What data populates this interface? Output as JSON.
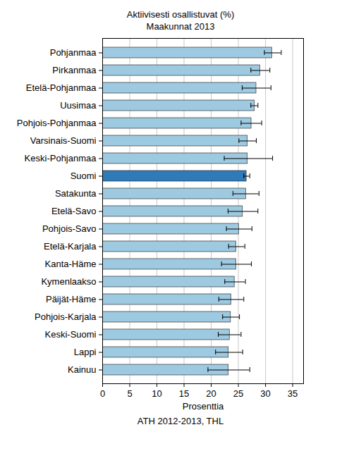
{
  "chart_data": {
    "type": "bar",
    "orientation": "horizontal",
    "title": "Aktiivisesti osallistuvat (%)",
    "subtitle": "Maakunnat 2013",
    "x_label": "Prosenttia",
    "caption": "ATH 2012-2013, THL",
    "categories": [
      "Pohjanmaa",
      "Pirkanmaa",
      "Etelä-Pohjanmaa",
      "Uusimaa",
      "Pohjois-Pohjanmaa",
      "Varsinais-Suomi",
      "Keski-Pohjanmaa",
      "Suomi",
      "Satakunta",
      "Etelä-Savo",
      "Pohjois-Savo",
      "Etelä-Karjala",
      "Kanta-Häme",
      "Kymenlaakso",
      "Päijät-Häme",
      "Pohjois-Karjala",
      "Keski-Suomi",
      "Lappi",
      "Kainuu"
    ],
    "values": [
      31.2,
      29.0,
      28.3,
      28.0,
      27.4,
      26.7,
      26.7,
      26.5,
      26.4,
      25.8,
      25.1,
      24.6,
      24.6,
      24.3,
      23.7,
      23.6,
      23.4,
      23.2,
      23.2
    ],
    "error_low": [
      29.8,
      27.3,
      25.7,
      27.3,
      25.5,
      25.1,
      22.4,
      26.0,
      24.0,
      23.1,
      22.8,
      23.2,
      21.9,
      22.5,
      21.4,
      22.1,
      21.3,
      20.8,
      19.4
    ],
    "error_high": [
      32.9,
      30.8,
      31.0,
      28.6,
      29.3,
      28.3,
      31.3,
      27.1,
      28.8,
      28.6,
      27.5,
      26.2,
      27.4,
      26.3,
      26.0,
      25.2,
      25.5,
      25.8,
      27.1
    ],
    "colors": [
      "#9ecae1",
      "#9ecae1",
      "#9ecae1",
      "#9ecae1",
      "#9ecae1",
      "#9ecae1",
      "#9ecae1",
      "#2f7ab9",
      "#9ecae1",
      "#9ecae1",
      "#9ecae1",
      "#9ecae1",
      "#9ecae1",
      "#9ecae1",
      "#9ecae1",
      "#9ecae1",
      "#9ecae1",
      "#9ecae1",
      "#9ecae1"
    ],
    "xlim": [
      0,
      37
    ],
    "xticks": [
      0,
      5,
      10,
      15,
      20,
      25,
      30,
      35
    ],
    "grid": true
  }
}
